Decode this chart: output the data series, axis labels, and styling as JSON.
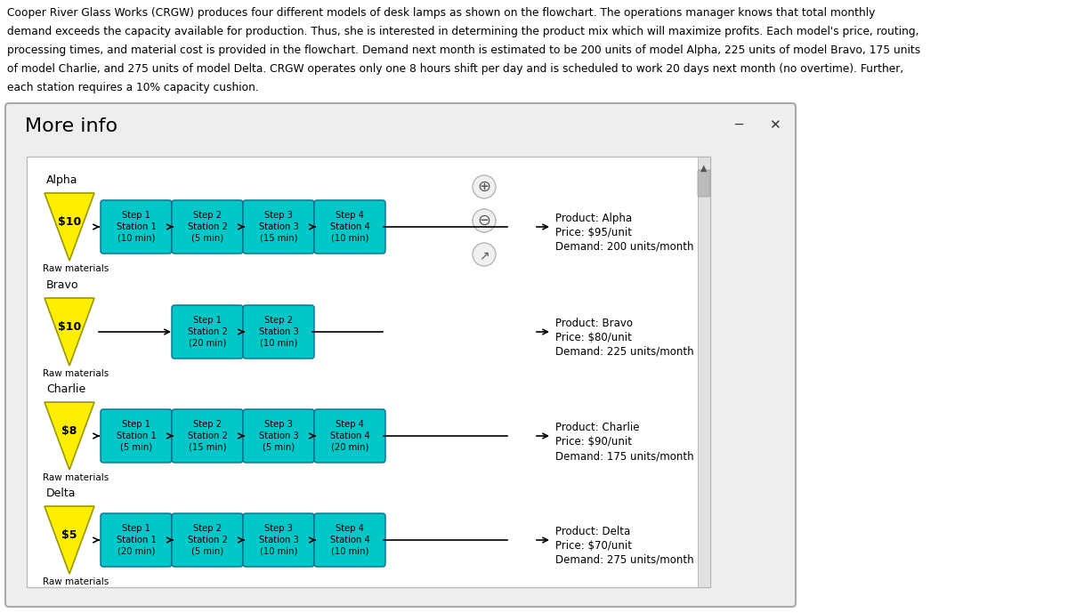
{
  "title_text": "Cooper River Glass Works (CRGW) produces four different models of desk lamps as shown on the flowchart. The operations manager knows that total monthly\ndemand exceeds the capacity available for production. Thus, she is interested in determining the product mix which will maximize profits. Each model's price, routing,\nprocessing times, and material cost is provided in the flowchart. Demand next month is estimated to be 200 units of model Alpha, 225 units of model Bravo, 175 units\nof model Charlie, and 275 units of model Delta. CRGW operates only one 8 hours shift per day and is scheduled to work 20 days next month (no overtime). Further,\neach station requires a 10% capacity cushion.",
  "dialog_title": "More info",
  "box_color": "#00c8c8",
  "triangle_color": "#ffee00",
  "triangle_edge": "#999900",
  "text_color": "#000000",
  "products": [
    {
      "name": "Alpha",
      "material_cost": "$10",
      "steps": [
        {
          "label": "Step 1\nStation 1\n(10 min)"
        },
        {
          "label": "Step 2\nStation 2\n(5 min)"
        },
        {
          "label": "Step 3\nStation 3\n(15 min)"
        },
        {
          "label": "Step 4\nStation 4\n(10 min)"
        }
      ],
      "n_steps": 4,
      "product_info_lines": [
        "Product: Alpha",
        "Price: $95/unit",
        "Demand: 200 units/month"
      ]
    },
    {
      "name": "Bravo",
      "material_cost": "$10",
      "steps": [
        {
          "label": "Step 1\nStation 2\n(20 min)"
        },
        {
          "label": "Step 2\nStation 3\n(10 min)"
        }
      ],
      "n_steps": 2,
      "product_info_lines": [
        "Product: Bravo",
        "Price: $80/unit",
        "Demand: 225 units/month"
      ]
    },
    {
      "name": "Charlie",
      "material_cost": "$8",
      "steps": [
        {
          "label": "Step 1\nStation 1\n(5 min)"
        },
        {
          "label": "Step 2\nStation 2\n(15 min)"
        },
        {
          "label": "Step 3\nStation 3\n(5 min)"
        },
        {
          "label": "Step 4\nStation 4\n(20 min)"
        }
      ],
      "n_steps": 4,
      "product_info_lines": [
        "Product: Charlie",
        "Price: $90/unit",
        "Demand: 175 units/month"
      ]
    },
    {
      "name": "Delta",
      "material_cost": "$5",
      "steps": [
        {
          "label": "Step 1\nStation 1\n(20 min)"
        },
        {
          "label": "Step 2\nStation 2\n(5 min)"
        },
        {
          "label": "Step 3\nStation 3\n(10 min)"
        },
        {
          "label": "Step 4\nStation 4\n(10 min)"
        }
      ],
      "n_steps": 4,
      "product_info_lines": [
        "Product: Delta",
        "Price: $70/unit",
        "Demand: 275 units/month"
      ]
    }
  ]
}
